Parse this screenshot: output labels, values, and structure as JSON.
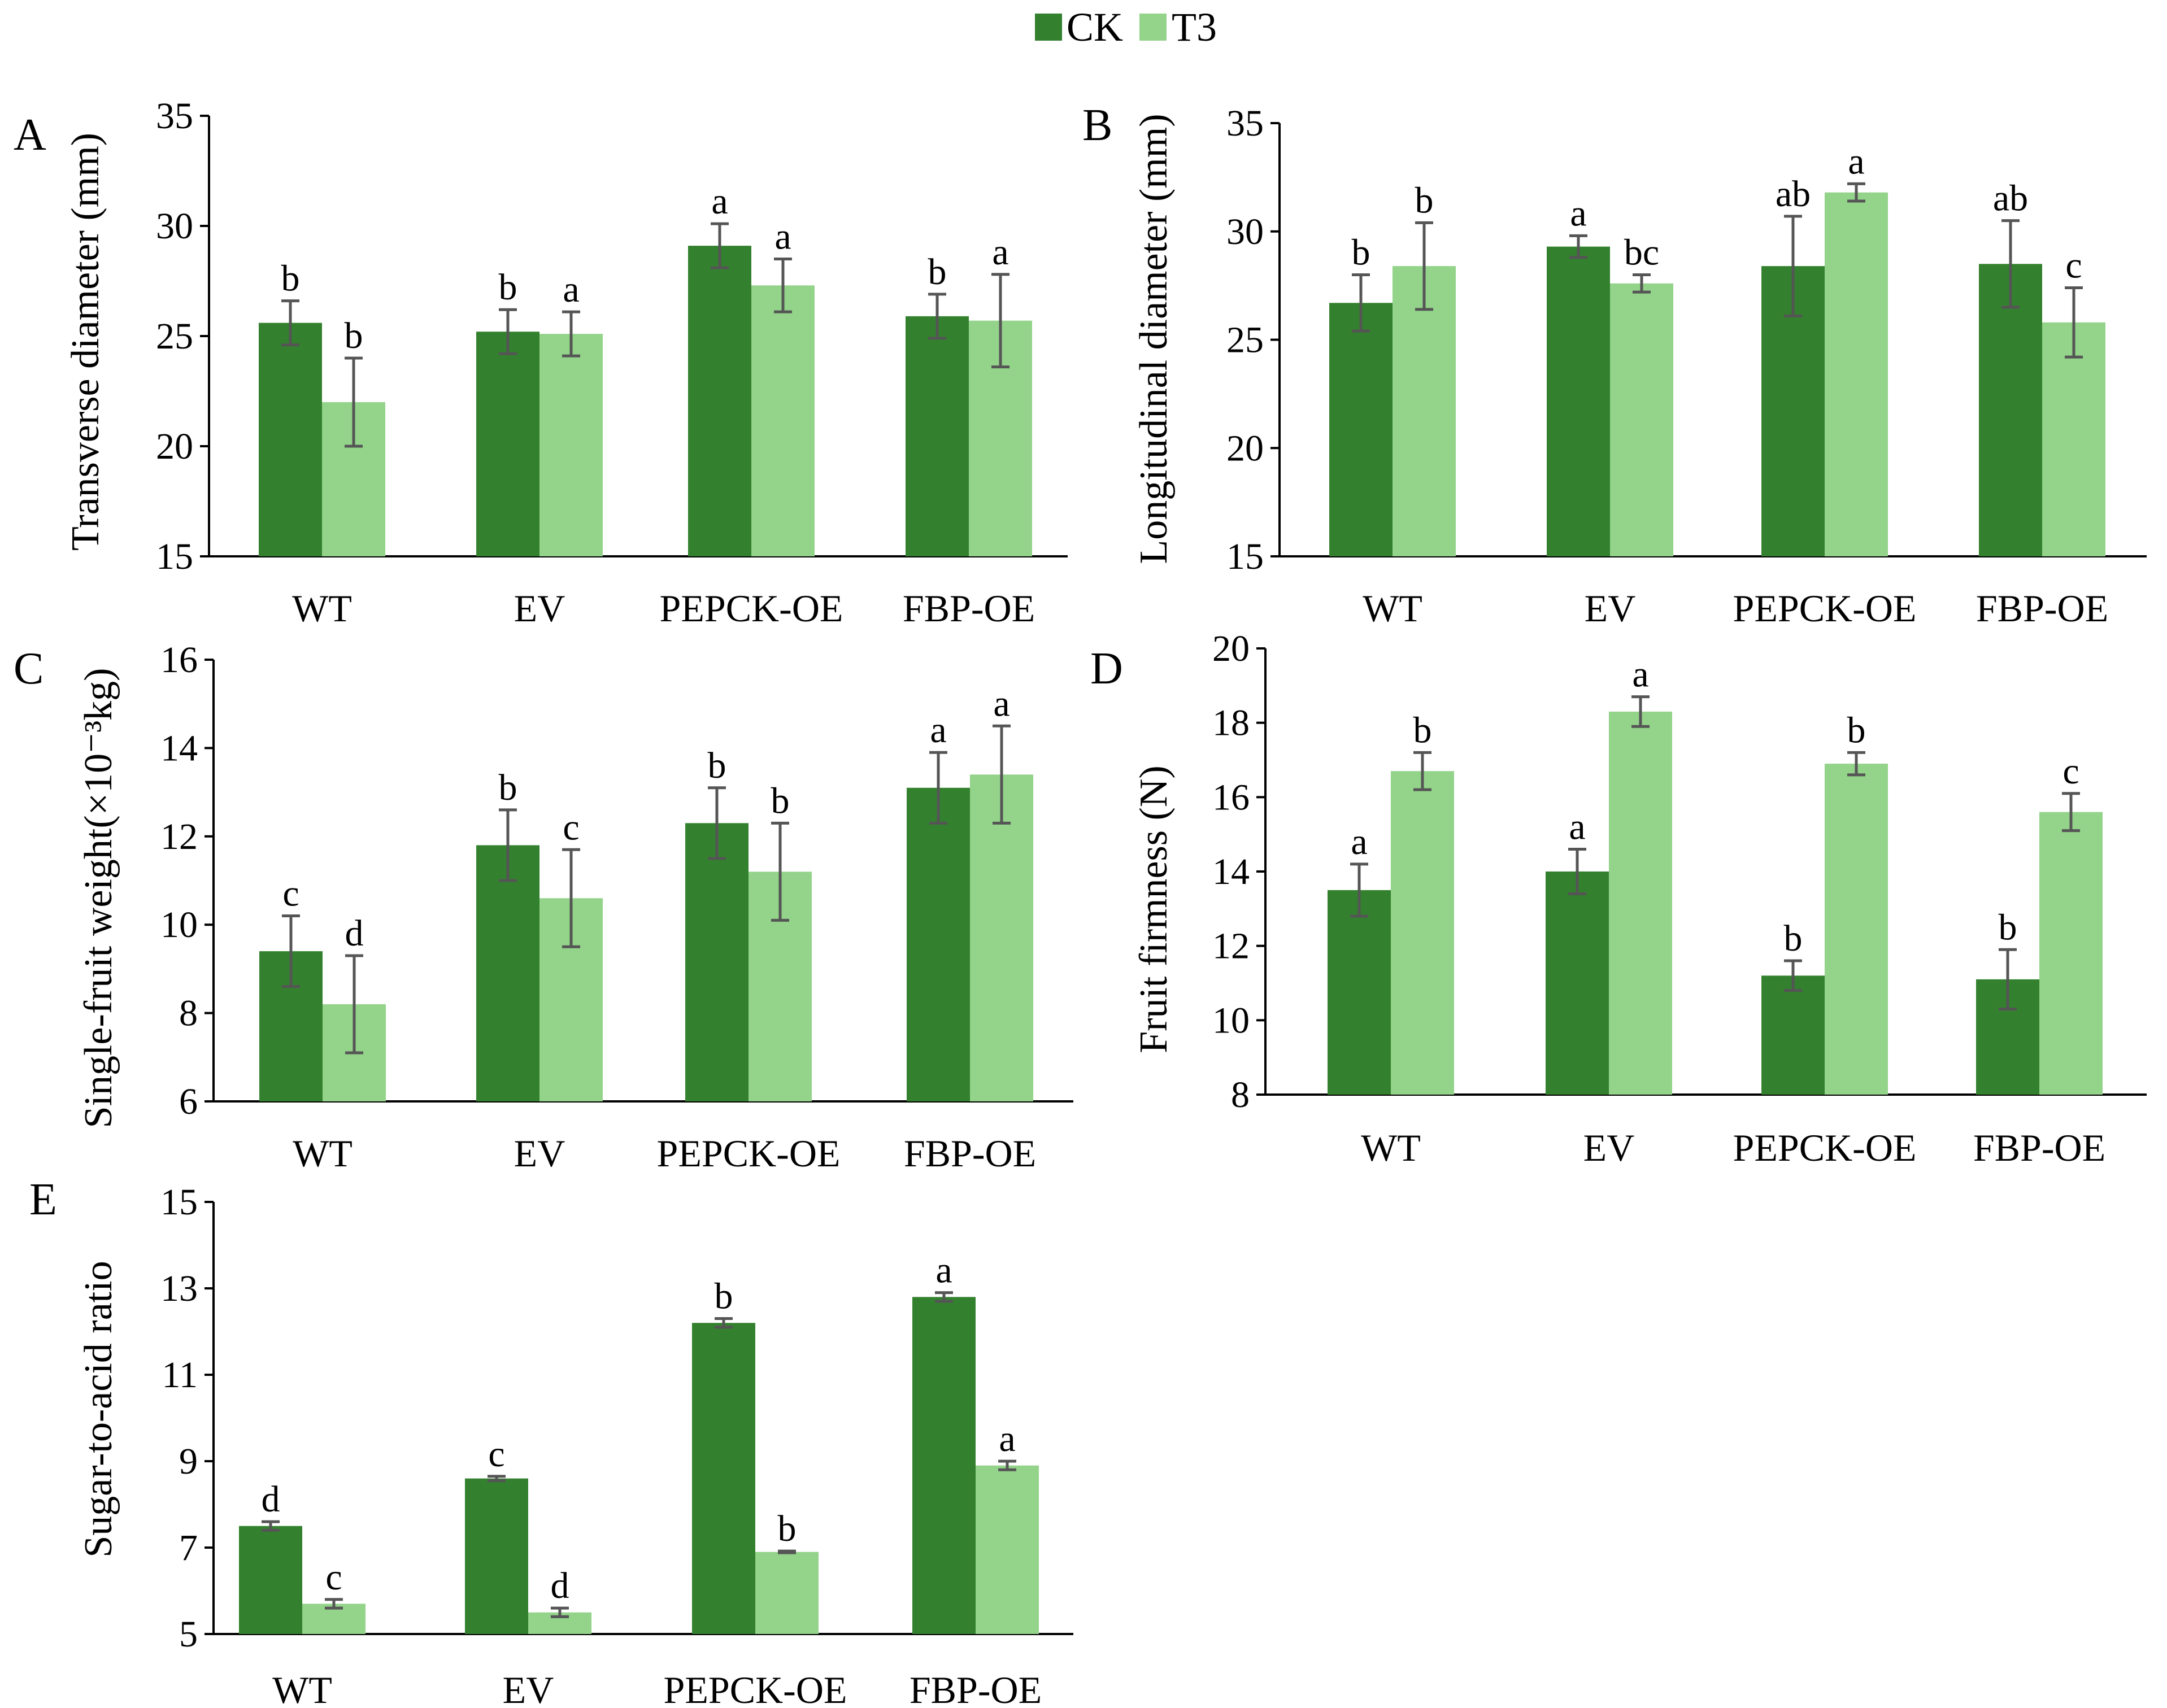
{
  "legend": {
    "ck_label": "CK",
    "t3_label": "T3",
    "ck_color": "#33812e",
    "t3_color": "#93d38a"
  },
  "chart_data": [
    {
      "type": "bar",
      "panel": "A",
      "ylabel": "Transverse diameter (mm)",
      "ylim": [
        15,
        35
      ],
      "yticks": [
        15,
        20,
        25,
        30,
        35
      ],
      "categories": [
        "WT",
        "EV",
        "PEPCK-OE",
        "FBP-OE"
      ],
      "series": [
        {
          "name": "CK",
          "values": [
            25.6,
            25.2,
            29.1,
            25.9
          ],
          "errors": [
            1.0,
            1.0,
            1.0,
            1.0
          ],
          "letters": [
            "b",
            "b",
            "a",
            "b"
          ]
        },
        {
          "name": "T3",
          "values": [
            22.0,
            25.1,
            27.3,
            25.7
          ],
          "errors": [
            2.0,
            1.0,
            1.2,
            2.1
          ],
          "letters": [
            "b",
            "a",
            "a",
            "a"
          ]
        }
      ]
    },
    {
      "type": "bar",
      "panel": "B",
      "ylabel": "Longitudinal diameter (mm)",
      "ylim": [
        15,
        35
      ],
      "yticks": [
        15,
        20,
        25,
        30,
        35
      ],
      "categories": [
        "WT",
        "EV",
        "PEPCK-OE",
        "FBP-OE"
      ],
      "series": [
        {
          "name": "CK",
          "values": [
            26.7,
            29.3,
            28.4,
            28.5
          ],
          "errors": [
            1.3,
            0.5,
            2.3,
            2.0
          ],
          "letters": [
            "b",
            "a",
            "ab",
            "ab"
          ]
        },
        {
          "name": "T3",
          "values": [
            28.4,
            27.6,
            31.8,
            25.8
          ],
          "errors": [
            2.0,
            0.4,
            0.4,
            1.6
          ],
          "letters": [
            "b",
            "bc",
            "a",
            "c"
          ]
        }
      ]
    },
    {
      "type": "bar",
      "panel": "C",
      "ylabel": "Single-fruit weight(×10⁻³kg)",
      "ylim": [
        6,
        16
      ],
      "yticks": [
        6,
        8,
        10,
        12,
        14,
        16
      ],
      "categories": [
        "WT",
        "EV",
        "PEPCK-OE",
        "FBP-OE"
      ],
      "series": [
        {
          "name": "CK",
          "values": [
            9.4,
            11.8,
            12.3,
            13.1
          ],
          "errors": [
            0.8,
            0.8,
            0.8,
            0.8
          ],
          "letters": [
            "c",
            "b",
            "b",
            "a"
          ]
        },
        {
          "name": "T3",
          "values": [
            8.2,
            10.6,
            11.2,
            13.4
          ],
          "errors": [
            1.1,
            1.1,
            1.1,
            1.1
          ],
          "letters": [
            "d",
            "c",
            "b",
            "a"
          ]
        }
      ]
    },
    {
      "type": "bar",
      "panel": "D",
      "ylabel": "Fruit firmness (N)",
      "ylim": [
        8,
        20
      ],
      "yticks": [
        8,
        10,
        12,
        14,
        16,
        18,
        20
      ],
      "categories": [
        "WT",
        "EV",
        "PEPCK-OE",
        "FBP-OE"
      ],
      "series": [
        {
          "name": "CK",
          "values": [
            13.5,
            14.0,
            11.2,
            11.1
          ],
          "errors": [
            0.7,
            0.6,
            0.4,
            0.8
          ],
          "letters": [
            "a",
            "a",
            "b",
            "b"
          ]
        },
        {
          "name": "T3",
          "values": [
            16.7,
            18.3,
            16.9,
            15.6
          ],
          "errors": [
            0.5,
            0.4,
            0.3,
            0.5
          ],
          "letters": [
            "b",
            "a",
            "b",
            "c"
          ]
        }
      ]
    },
    {
      "type": "bar",
      "panel": "E",
      "ylabel": "Sugar-to-acid ratio",
      "ylim": [
        5,
        15
      ],
      "yticks": [
        5,
        7,
        9,
        11,
        13,
        15
      ],
      "categories": [
        "WT",
        "EV",
        "PEPCK-OE",
        "FBP-OE"
      ],
      "series": [
        {
          "name": "CK",
          "values": [
            7.5,
            8.6,
            12.2,
            12.8
          ],
          "errors": [
            0.1,
            0.05,
            0.1,
            0.1
          ],
          "letters": [
            "d",
            "c",
            "b",
            "a"
          ]
        },
        {
          "name": "T3",
          "values": [
            5.7,
            5.5,
            6.9,
            8.9
          ],
          "errors": [
            0.1,
            0.1,
            0.02,
            0.1
          ],
          "letters": [
            "c",
            "d",
            "b",
            "a"
          ]
        }
      ]
    }
  ]
}
